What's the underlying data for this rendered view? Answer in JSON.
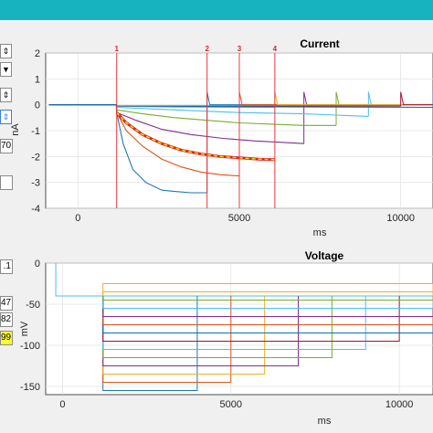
{
  "colors": {
    "titlebar": "#17b3bf",
    "marker": "#e8383d",
    "fit": "#d62728",
    "fit_dash": "#ffd700",
    "highlight_field": "#ffff33"
  },
  "left_controls": {
    "spinners": [
      {
        "icon": "spin-arrows-icon"
      },
      {
        "icon": "dropdown-arrow-icon"
      },
      {
        "icon": "spin-arrows-icon"
      },
      {
        "icon": "spin-arrows-icon"
      }
    ],
    "fields": [
      {
        "value": "70"
      },
      {
        "value": ""
      },
      {
        "value": ".1"
      },
      {
        "value": "47"
      },
      {
        "value": "82"
      },
      {
        "value": "99"
      }
    ]
  },
  "chart_data": [
    {
      "type": "line",
      "title": "Current",
      "xlabel": "ms",
      "ylabel": "nA",
      "xlim": [
        -1000,
        11000
      ],
      "ylim": [
        -4,
        2
      ],
      "xticks": [
        0,
        5000,
        10000
      ],
      "yticks": [
        2,
        1,
        0,
        -1,
        -2,
        -3,
        -4
      ],
      "markers": [
        {
          "label": "1",
          "x": 1200
        },
        {
          "label": "2",
          "x": 4000
        },
        {
          "label": "3",
          "x": 5000
        },
        {
          "label": "4",
          "x": 6100
        }
      ],
      "series": [
        {
          "color": "#1f77b4",
          "end_x": 4000,
          "points": [
            [
              1200,
              -0.3
            ],
            [
              1400,
              -1.5
            ],
            [
              1700,
              -2.5
            ],
            [
              2100,
              -3.0
            ],
            [
              2600,
              -3.3
            ],
            [
              3000,
              -3.35
            ],
            [
              3500,
              -3.4
            ],
            [
              4000,
              -3.4
            ]
          ]
        },
        {
          "color": "#d95319",
          "end_x": 5000,
          "points": [
            [
              1200,
              -0.3
            ],
            [
              1500,
              -1.0
            ],
            [
              2000,
              -1.6
            ],
            [
              2600,
              -2.1
            ],
            [
              3200,
              -2.4
            ],
            [
              3800,
              -2.6
            ],
            [
              4400,
              -2.7
            ],
            [
              5000,
              -2.75
            ]
          ]
        },
        {
          "color": "#7e2f8e",
          "end_x": 7000,
          "points": [
            [
              1200,
              -0.3
            ],
            [
              1800,
              -0.6
            ],
            [
              2600,
              -0.95
            ],
            [
              3500,
              -1.15
            ],
            [
              4500,
              -1.3
            ],
            [
              5500,
              -1.4
            ],
            [
              6300,
              -1.45
            ],
            [
              7000,
              -1.5
            ]
          ]
        },
        {
          "color": "#77ac30",
          "end_x": 8000,
          "points": [
            [
              1200,
              -0.2
            ],
            [
              2000,
              -0.35
            ],
            [
              3000,
              -0.5
            ],
            [
              4000,
              -0.6
            ],
            [
              5000,
              -0.7
            ],
            [
              6000,
              -0.75
            ],
            [
              7000,
              -0.8
            ],
            [
              8000,
              -0.8
            ]
          ]
        },
        {
          "color": "#4dbeee",
          "end_x": 9000,
          "points": [
            [
              1200,
              -0.1
            ],
            [
              3000,
              -0.2
            ],
            [
              5000,
              -0.3
            ],
            [
              7000,
              -0.35
            ],
            [
              8000,
              -0.4
            ],
            [
              9000,
              -0.45
            ]
          ]
        },
        {
          "color": "#edb120",
          "end_x": 6100,
          "points": [
            [
              1200,
              -0.05
            ],
            [
              3000,
              -0.1
            ],
            [
              5000,
              -0.1
            ],
            [
              6100,
              -0.1
            ]
          ]
        },
        {
          "color": "#a2142f",
          "end_x": 10000,
          "points": [
            [
              1200,
              -0.05
            ],
            [
              4000,
              -0.05
            ],
            [
              7000,
              -0.05
            ],
            [
              10000,
              -0.05
            ]
          ]
        },
        {
          "color": "#0072bd",
          "end_x": 11000,
          "points": [
            [
              1200,
              -0.05
            ],
            [
              6000,
              -0.08
            ],
            [
              11000,
              -0.1
            ]
          ]
        }
      ],
      "fit": {
        "color": "#d62728",
        "dash_color": "#ffd700",
        "points": [
          [
            1200,
            -0.3
          ],
          [
            1500,
            -0.7
          ],
          [
            2000,
            -1.15
          ],
          [
            2600,
            -1.5
          ],
          [
            3200,
            -1.75
          ],
          [
            3800,
            -1.9
          ],
          [
            4400,
            -2.0
          ],
          [
            5000,
            -2.05
          ],
          [
            5600,
            -2.1
          ],
          [
            6100,
            -2.12
          ]
        ]
      }
    },
    {
      "type": "line",
      "title": "Voltage",
      "xlabel": "ms",
      "ylabel": "mV",
      "xlim": [
        -500,
        11000
      ],
      "ylim": [
        -160,
        0
      ],
      "xticks": [
        0,
        5000,
        10000
      ],
      "yticks": [
        0,
        -50,
        -100,
        -150
      ],
      "holding": -40,
      "step_start": 1200,
      "steps": [
        {
          "level": -155,
          "end": 4000,
          "color": "#1f77b4"
        },
        {
          "level": -145,
          "end": 5000,
          "color": "#d95319"
        },
        {
          "level": -135,
          "end": 6000,
          "color": "#edb120"
        },
        {
          "level": -125,
          "end": 7000,
          "color": "#7e2f8e"
        },
        {
          "level": -115,
          "end": 8000,
          "color": "#77ac30"
        },
        {
          "level": -105,
          "end": 9000,
          "color": "#4dbeee"
        },
        {
          "level": -95,
          "end": 10000,
          "color": "#a2142f"
        },
        {
          "level": -85,
          "end": 11000,
          "color": "#0072bd"
        },
        {
          "level": -75,
          "end": 11000,
          "color": "#d95319"
        },
        {
          "level": -65,
          "end": 11000,
          "color": "#7e2f8e"
        },
        {
          "level": -55,
          "end": 11000,
          "color": "#4dbeee"
        },
        {
          "level": -45,
          "end": 11000,
          "color": "#77ac30"
        },
        {
          "level": -35,
          "end": 11000,
          "color": "#edb120"
        },
        {
          "level": -25,
          "end": 11000,
          "color": "#edb120"
        }
      ]
    }
  ]
}
